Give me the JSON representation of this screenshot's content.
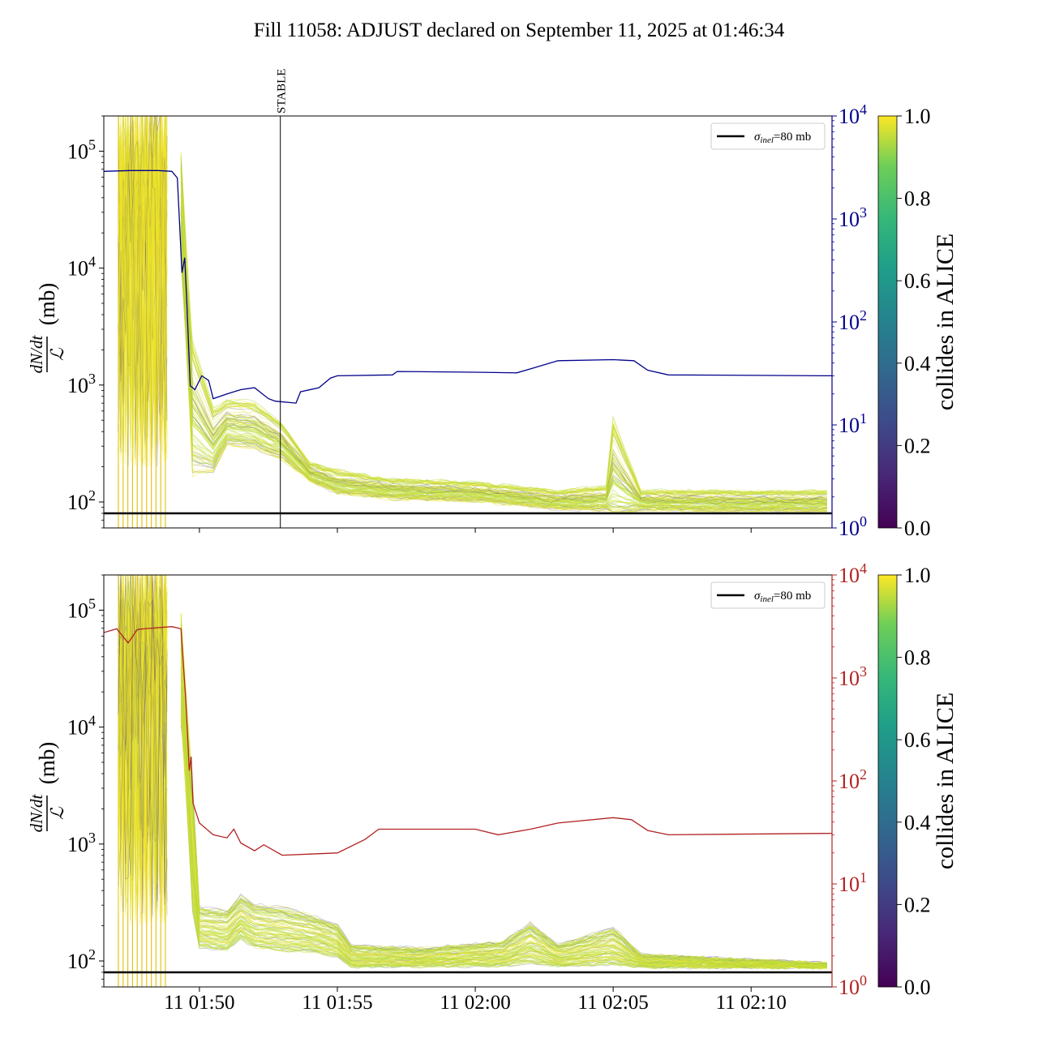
{
  "title": "Fill 11058: ADJUST declared on September 11, 2025 at 01:46:34",
  "colors": {
    "blue_line": "#00008b",
    "red_line": "#b22222",
    "threshold": "#000000"
  },
  "chart_data": [
    {
      "type": "line",
      "panel": "top",
      "ylabel_fraction_num": "dN/dt",
      "ylabel_fraction_den": "ℒ",
      "ylabel_unit": "(mb)",
      "xlim": [
        "01:46:32",
        "02:12:56"
      ],
      "ylim": [
        60,
        200000
      ],
      "yscale": "log",
      "yticks": [
        {
          "v": 100000,
          "b": "10",
          "e": "5"
        },
        {
          "v": 10000,
          "b": "10",
          "e": "4"
        },
        {
          "v": 1000,
          "b": "10",
          "e": "3"
        },
        {
          "v": 100,
          "b": "10",
          "e": "2"
        }
      ],
      "xticks": [
        {
          "t": "01:50:00",
          "label": ""
        },
        {
          "t": "01:55:00",
          "label": ""
        },
        {
          "t": "02:00:00",
          "label": ""
        },
        {
          "t": "02:05:00",
          "label": ""
        },
        {
          "t": "02:10:00",
          "label": ""
        }
      ],
      "annotation": {
        "label": "STABLE",
        "t": "01:52:56"
      },
      "legend": {
        "label_sym": "σ",
        "label_sub": "inel",
        "label_rest": "=80 mb",
        "placement": "top-right"
      },
      "threshold": 80,
      "right_axis": {
        "ylim": [
          1,
          10000
        ],
        "color": "#00008b",
        "yticks": [
          {
            "v": 1,
            "b": "10",
            "e": "0"
          },
          {
            "v": 10,
            "b": "10",
            "e": "1"
          },
          {
            "v": 100,
            "b": "10",
            "e": "2"
          },
          {
            "v": 1000,
            "b": "10",
            "e": "3"
          },
          {
            "v": 10000,
            "b": "10",
            "e": "4"
          }
        ]
      },
      "right_series": [
        [
          "01:46:32",
          2900
        ],
        [
          "01:47:30",
          2950
        ],
        [
          "01:48:30",
          2950
        ],
        [
          "01:49:00",
          2900
        ],
        [
          "01:49:12",
          2500
        ],
        [
          "01:49:22",
          300
        ],
        [
          "01:49:28",
          420
        ],
        [
          "01:49:33",
          140
        ],
        [
          "01:49:40",
          24
        ],
        [
          "01:49:50",
          22
        ],
        [
          "01:50:05",
          30
        ],
        [
          "01:50:20",
          27
        ],
        [
          "01:50:30",
          18
        ],
        [
          "01:51:00",
          20
        ],
        [
          "01:51:30",
          22
        ],
        [
          "01:52:00",
          23
        ],
        [
          "01:52:30",
          18
        ],
        [
          "01:52:45",
          17
        ],
        [
          "01:53:30",
          16.3
        ],
        [
          "01:53:40",
          21
        ],
        [
          "01:54:20",
          23
        ],
        [
          "01:54:45",
          28.5
        ],
        [
          "01:55:00",
          30
        ],
        [
          "01:57:00",
          30.6
        ],
        [
          "01:57:10",
          33
        ],
        [
          "02:00:00",
          32.5
        ],
        [
          "02:01:30",
          32
        ],
        [
          "02:02:00",
          35
        ],
        [
          "02:03:00",
          42
        ],
        [
          "02:05:00",
          43
        ],
        [
          "02:05:45",
          42
        ],
        [
          "02:06:15",
          34
        ],
        [
          "02:07:00",
          30.6
        ],
        [
          "02:12:56",
          30
        ]
      ],
      "bunch_band": {
        "count": 90,
        "injection_end": "01:49:40",
        "median": [
          [
            "01:49:45",
            260
          ],
          [
            "01:50:30",
            220
          ],
          [
            "01:51:00",
            357
          ],
          [
            "01:52:00",
            330
          ],
          [
            "01:53:00",
            260
          ],
          [
            "01:54:00",
            160
          ],
          [
            "01:55:00",
            127
          ],
          [
            "01:57:00",
            113
          ],
          [
            "02:00:00",
            108
          ],
          [
            "02:03:00",
            92
          ],
          [
            "02:05:00",
            92
          ],
          [
            "02:10:00",
            88
          ],
          [
            "02:12:56",
            88
          ]
        ],
        "upper": [
          [
            "01:49:45",
            2800
          ],
          [
            "01:50:30",
            680
          ],
          [
            "01:51:00",
            790
          ],
          [
            "01:52:00",
            750
          ],
          [
            "01:53:00",
            490
          ],
          [
            "01:54:00",
            220
          ],
          [
            "01:55:00",
            190
          ],
          [
            "01:57:00",
            160
          ],
          [
            "02:00:00",
            150
          ],
          [
            "02:03:00",
            127
          ],
          [
            "02:04:50",
            140
          ],
          [
            "02:05:00",
            580
          ],
          [
            "02:06:00",
            127
          ],
          [
            "02:12:56",
            127
          ]
        ]
      },
      "colorbar": {
        "label": "collides in ALICE",
        "range": [
          0,
          1
        ],
        "ticks": [
          "0.0",
          "0.2",
          "0.4",
          "0.6",
          "0.8",
          "1.0"
        ]
      }
    },
    {
      "type": "line",
      "panel": "bottom",
      "ylabel_fraction_num": "dN/dt",
      "ylabel_fraction_den": "ℒ",
      "ylabel_unit": "(mb)",
      "xlim": [
        "01:46:32",
        "02:12:56"
      ],
      "ylim": [
        60,
        200000
      ],
      "yscale": "log",
      "yticks": [
        {
          "v": 100000,
          "b": "10",
          "e": "5"
        },
        {
          "v": 10000,
          "b": "10",
          "e": "4"
        },
        {
          "v": 1000,
          "b": "10",
          "e": "3"
        },
        {
          "v": 100,
          "b": "10",
          "e": "2"
        }
      ],
      "xticks": [
        {
          "t": "01:50:00",
          "label": "11 01:50"
        },
        {
          "t": "01:55:00",
          "label": "11 01:55"
        },
        {
          "t": "02:00:00",
          "label": "11 02:00"
        },
        {
          "t": "02:05:00",
          "label": "11 02:05"
        },
        {
          "t": "02:10:00",
          "label": "11 02:10"
        }
      ],
      "legend": {
        "label_sym": "σ",
        "label_sub": "inel",
        "label_rest": "=80 mb",
        "placement": "top-right"
      },
      "threshold": 80,
      "right_axis": {
        "ylim": [
          1,
          10000
        ],
        "color": "#b22222",
        "yticks": [
          {
            "v": 1,
            "b": "10",
            "e": "0"
          },
          {
            "v": 10,
            "b": "10",
            "e": "1"
          },
          {
            "v": 100,
            "b": "10",
            "e": "2"
          },
          {
            "v": 1000,
            "b": "10",
            "e": "3"
          },
          {
            "v": 10000,
            "b": "10",
            "e": "4"
          }
        ]
      },
      "right_series": [
        [
          "01:46:32",
          2760
        ],
        [
          "01:47:00",
          3000
        ],
        [
          "01:47:25",
          2190
        ],
        [
          "01:47:45",
          2950
        ],
        [
          "01:48:00",
          3000
        ],
        [
          "01:49:00",
          3150
        ],
        [
          "01:49:20",
          3000
        ],
        [
          "01:49:30",
          650
        ],
        [
          "01:49:38",
          126
        ],
        [
          "01:49:42",
          172
        ],
        [
          "01:49:46",
          61
        ],
        [
          "01:50:00",
          39
        ],
        [
          "01:50:30",
          30
        ],
        [
          "01:51:00",
          28
        ],
        [
          "01:51:15",
          34
        ],
        [
          "01:51:30",
          25
        ],
        [
          "01:52:00",
          21
        ],
        [
          "01:52:20",
          24
        ],
        [
          "01:53:00",
          19
        ],
        [
          "01:54:00",
          19.5
        ],
        [
          "01:55:00",
          20
        ],
        [
          "01:56:00",
          27
        ],
        [
          "01:56:30",
          34
        ],
        [
          "01:57:00",
          34
        ],
        [
          "02:00:00",
          34
        ],
        [
          "02:00:50",
          30
        ],
        [
          "02:02:00",
          34
        ],
        [
          "02:03:00",
          39
        ],
        [
          "02:05:00",
          44
        ],
        [
          "02:05:40",
          42
        ],
        [
          "02:06:15",
          33
        ],
        [
          "02:07:00",
          30
        ],
        [
          "02:12:56",
          31
        ]
      ],
      "bunch_band": {
        "count": 90,
        "injection_end": "01:49:40",
        "median": [
          [
            "01:49:45",
            400
          ],
          [
            "01:50:00",
            150
          ],
          [
            "01:51:00",
            140
          ],
          [
            "01:51:30",
            180
          ],
          [
            "01:52:00",
            150
          ],
          [
            "01:53:00",
            140
          ],
          [
            "01:54:00",
            135
          ],
          [
            "01:55:00",
            120
          ],
          [
            "01:55:30",
            95
          ],
          [
            "01:58:00",
            95
          ],
          [
            "02:01:00",
            98
          ],
          [
            "02:02:00",
            110
          ],
          [
            "02:03:00",
            96
          ],
          [
            "02:05:00",
            105
          ],
          [
            "02:06:00",
            92
          ],
          [
            "02:12:56",
            89
          ]
        ],
        "upper": [
          [
            "01:49:45",
            4000
          ],
          [
            "01:50:00",
            300
          ],
          [
            "01:51:00",
            280
          ],
          [
            "01:51:30",
            380
          ],
          [
            "01:52:00",
            320
          ],
          [
            "01:53:00",
            300
          ],
          [
            "01:54:00",
            260
          ],
          [
            "01:55:00",
            210
          ],
          [
            "01:55:30",
            140
          ],
          [
            "01:58:00",
            130
          ],
          [
            "02:01:00",
            150
          ],
          [
            "02:02:00",
            220
          ],
          [
            "02:03:00",
            140
          ],
          [
            "02:05:00",
            200
          ],
          [
            "02:06:00",
            115
          ],
          [
            "02:12:56",
            95
          ]
        ]
      },
      "colorbar": {
        "label": "collides in ALICE",
        "range": [
          0,
          1
        ],
        "ticks": [
          "0.0",
          "0.2",
          "0.4",
          "0.6",
          "0.8",
          "1.0"
        ]
      }
    }
  ]
}
